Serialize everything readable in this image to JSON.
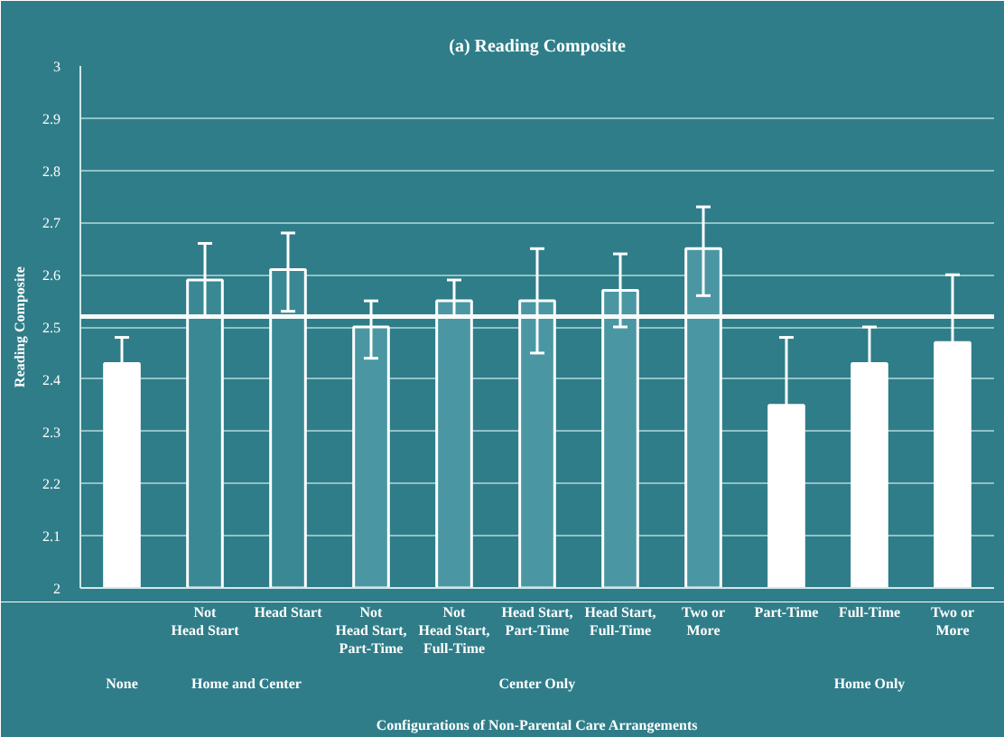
{
  "chart_data": {
    "type": "bar",
    "title": "(a) Reading Composite",
    "xlabel": "Configurations of Non-Parental Care Arrangements",
    "ylabel": "Reading Composite",
    "categories": [
      null,
      "Not\nHead Start",
      "Head Start",
      "Not\nHead Start,\nPart-Time",
      "Not\nHead Start,\nFull-Time",
      "Head Start,\nPart-Time",
      "Head Start,\nFull-Time",
      "Two or\nMore",
      "Part-Time",
      "Full-Time",
      "Two or\nMore"
    ],
    "annotations": [
      "None",
      "Home and Center",
      "Center Only",
      "Home Only"
    ],
    "values": [
      2.43,
      2.59,
      2.61,
      2.5,
      2.55,
      2.55,
      2.57,
      2.65,
      2.35,
      2.43,
      2.47
    ],
    "errors": [
      0.05,
      [
        2.52,
        2.66
      ],
      [
        2.53,
        2.68
      ],
      [
        2.44,
        2.55
      ],
      [
        2.52,
        2.59
      ],
      [
        2.45,
        2.65
      ],
      [
        2.5,
        2.64
      ],
      [
        2.56,
        2.73
      ],
      0.13,
      0.07,
      0.13
    ],
    "colors": [
      "#ffffff",
      "#3a8894",
      "#3a8894",
      "#4a97a3",
      "#4a97a3",
      "#4a97a3",
      "#4a97a3",
      "#4a97a3",
      "#ffffff",
      "#ffffff",
      "#ffffff"
    ],
    "ylim": [
      2,
      3
    ],
    "yticks": [
      2,
      2.1,
      2.2,
      2.3,
      2.4,
      2.5,
      2.6,
      2.7,
      2.8,
      2.9,
      3
    ],
    "grid": "y",
    "ref_lines": [
      {
        "axis": "y",
        "value": 2.52,
        "label": null,
        "color": "#f4fbfb"
      }
    ]
  }
}
